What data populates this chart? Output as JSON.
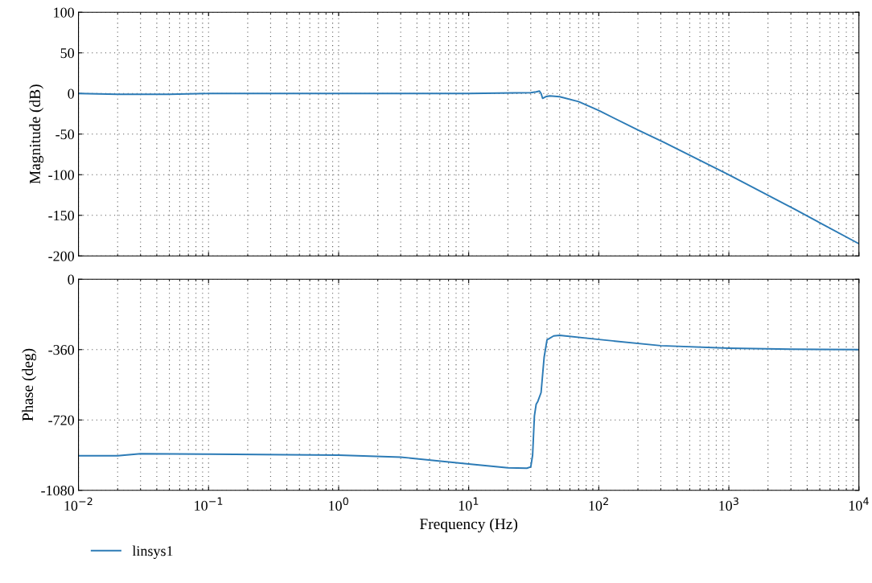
{
  "chart_data": [
    {
      "type": "line",
      "ylabel": "Magnitude (dB)",
      "log": "x",
      "grid": true,
      "tick_labels": "y",
      "xlim": [
        0.01,
        10000
      ],
      "ylim": [
        -200,
        100
      ],
      "yticks": [
        -200,
        -150,
        -100,
        -50,
        0,
        50,
        100
      ],
      "xticks": [
        {
          "value": 0.01,
          "label": null
        },
        {
          "value": 0.1,
          "label": null
        },
        {
          "value": 1,
          "label": null
        },
        {
          "value": 10,
          "label": null
        },
        {
          "value": 100,
          "label": null
        },
        {
          "value": 1000,
          "label": null
        },
        {
          "value": 10000,
          "label": null
        }
      ],
      "series": [
        {
          "color": "#2c7bb6",
          "x": [
            0.01,
            0.02,
            0.05,
            0.1,
            1,
            10,
            30,
            33,
            35,
            36,
            37,
            39,
            42,
            50,
            70,
            100,
            200,
            316,
            1000,
            3162,
            10000
          ],
          "values": [
            0,
            -1,
            -1,
            0,
            0,
            0,
            1,
            2,
            3,
            0,
            -6,
            -4,
            -3,
            -4,
            -10,
            -21,
            -45,
            -60,
            -100,
            -142,
            -185
          ]
        }
      ]
    },
    {
      "type": "line",
      "xlabel": "Frequency (Hz)",
      "ylabel": "Phase (deg)",
      "log": "x",
      "grid": true,
      "legend": "bottom left",
      "xlim": [
        0.01,
        10000
      ],
      "ylim": [
        -1080,
        0
      ],
      "yticks": [
        -1080,
        -720,
        -360,
        0
      ],
      "xticks": [
        {
          "value": 0.01,
          "label": "10$^{−2}$"
        },
        {
          "value": 0.1,
          "label": "10$^{−1}$"
        },
        {
          "value": 1,
          "label": "10$^{0}$"
        },
        {
          "value": 10,
          "label": "10$^{1}$"
        },
        {
          "value": 100,
          "label": "10$^{2}$"
        },
        {
          "value": 1000,
          "label": "10$^{3}$"
        },
        {
          "value": 10000,
          "label": "10$^{4}$"
        }
      ],
      "series": [
        {
          "name": "linsys1",
          "color": "#2c7bb6",
          "x": [
            0.01,
            0.02,
            0.03,
            0.1,
            1,
            3,
            10,
            20,
            28,
            30,
            31,
            32,
            33,
            34,
            36,
            38,
            40,
            45,
            50,
            100,
            300,
            1000,
            3000,
            10000
          ],
          "values": [
            -903,
            -903,
            -893,
            -895,
            -900,
            -910,
            -945,
            -965,
            -967,
            -960,
            -900,
            -700,
            -640,
            -625,
            -580,
            -400,
            -310,
            -290,
            -287,
            -308,
            -340,
            -353,
            -358,
            -360
          ]
        }
      ]
    }
  ]
}
